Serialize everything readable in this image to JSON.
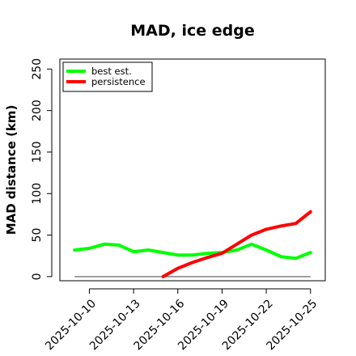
{
  "chart_data": {
    "type": "line",
    "title": "MAD, ice edge",
    "xlabel": "",
    "ylabel": "MAD distance (km)",
    "ylim": [
      -5,
      262
    ],
    "yticks": [
      0,
      50,
      100,
      150,
      200,
      250
    ],
    "xlim": [
      "2025-10-08",
      "2025-10-26"
    ],
    "xtick_labels": [
      "2025-10-10",
      "2025-10-13",
      "2025-10-16",
      "2025-10-19",
      "2025-10-22",
      "2025-10-25"
    ],
    "legend": {
      "position": "top-left"
    },
    "reference_line": {
      "value": 0,
      "color": "#808080"
    },
    "series": [
      {
        "name": "best est.",
        "color": "#00ff00",
        "x": [
          "2025-10-09",
          "2025-10-10",
          "2025-10-11",
          "2025-10-12",
          "2025-10-13",
          "2025-10-14",
          "2025-10-15",
          "2025-10-16",
          "2025-10-17",
          "2025-10-18",
          "2025-10-19",
          "2025-10-20",
          "2025-10-21",
          "2025-10-22",
          "2025-10-23",
          "2025-10-24",
          "2025-10-25"
        ],
        "values": [
          32,
          34,
          39,
          38,
          30,
          32,
          29,
          26,
          26,
          28,
          29,
          32,
          39,
          32,
          24,
          22,
          29
        ]
      },
      {
        "name": "persistence",
        "color": "#ff0000",
        "x": [
          "2025-10-15",
          "2025-10-16",
          "2025-10-17",
          "2025-10-18",
          "2025-10-19",
          "2025-10-20",
          "2025-10-21",
          "2025-10-22",
          "2025-10-23",
          "2025-10-24",
          "2025-10-25"
        ],
        "values": [
          0,
          10,
          17,
          23,
          28,
          39,
          50,
          57,
          61,
          64,
          78
        ]
      }
    ]
  }
}
